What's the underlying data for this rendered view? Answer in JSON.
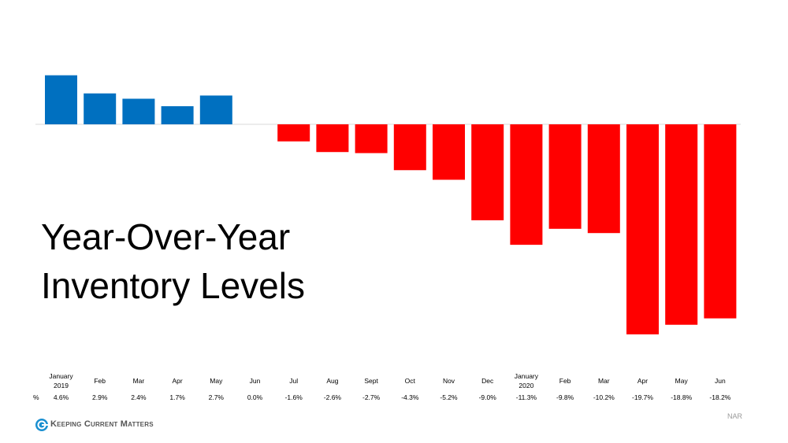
{
  "chart_data": {
    "type": "bar",
    "title": "Year-Over-Year Inventory Levels",
    "categories": [
      "January 2019",
      "Feb",
      "Mar",
      "Apr",
      "May",
      "Jun",
      "Jul",
      "Aug",
      "Sept",
      "Oct",
      "Nov",
      "Dec",
      "January 2020",
      "Feb",
      "Mar",
      "Apr",
      "May",
      "Jun"
    ],
    "values": [
      4.6,
      2.9,
      2.4,
      1.7,
      2.7,
      0.0,
      -1.6,
      -2.6,
      -2.7,
      -4.3,
      -5.2,
      -9.0,
      -11.3,
      -9.8,
      -10.2,
      -19.7,
      -18.8,
      -18.2
    ],
    "value_labels": [
      "4.6%",
      "2.9%",
      "2.4%",
      "1.7%",
      "2.7%",
      "0.0%",
      "-1.6%",
      "-2.6%",
      "-2.7%",
      "-4.3%",
      "-5.2%",
      "-9.0%",
      "-11.3%",
      "-9.8%",
      "-10.2%",
      "-19.7%",
      "-18.8%",
      "-18.2%"
    ],
    "row_label": "%",
    "positive_color": "#0070c0",
    "negative_color": "#ff0000",
    "source": "NAR"
  },
  "brand": "Keeping Current Matters"
}
